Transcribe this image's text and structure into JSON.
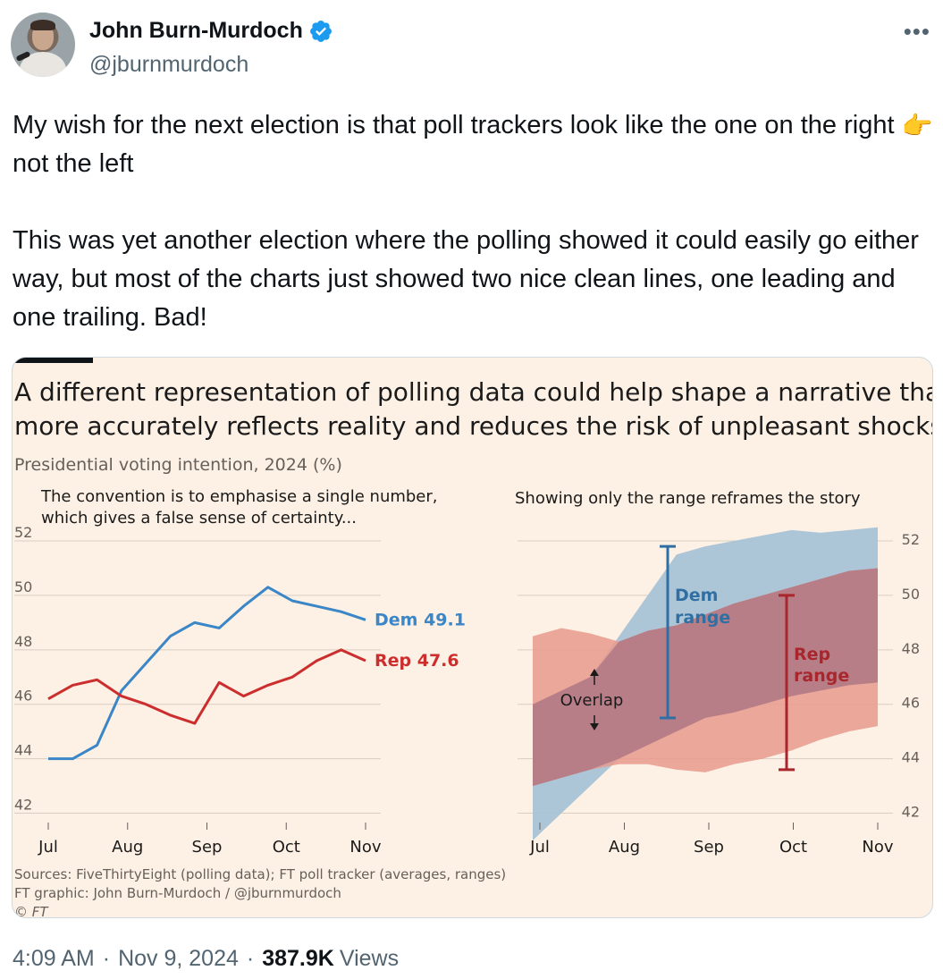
{
  "author": {
    "name": "John Burn-Murdoch",
    "handle": "@jburnmurdoch"
  },
  "tweet": {
    "line1_a": "My wish for the next election is that poll trackers look like the one on the",
    "line1_b": "right",
    "pointing_emoji": "👉",
    "line1_c": "not the left",
    "para2": "This was yet another election where the polling showed it could easily go either way, but most of the charts just showed two nice clean lines, one leading and one trailing. Bad!"
  },
  "card": {
    "title": "A different representation of polling data could help shape a narrative that more accurately reflects reality and reduces the risk of unpleasant shocks",
    "subtitle": "Presidential voting intention, 2024 (%)",
    "source1": "Sources: FiveThirtyEight (polling data); FT poll tracker (averages, ranges)",
    "source2": "FT graphic: John Burn-Murdoch / @jburnmurdoch",
    "source3": "© FT"
  },
  "footer": {
    "time": "4:09 AM",
    "date": "Nov 9, 2024",
    "views_count": "387.9K",
    "views_label": "Views"
  },
  "chart_data": [
    {
      "type": "line",
      "subtitle": "The convention is to emphasise a single number,",
      "subtitle2": "which gives a false sense of certainty...",
      "x": [
        "Jul 1",
        "Jul 10",
        "Jul 20",
        "Jul 25",
        "Aug 1",
        "Aug 10",
        "Aug 20",
        "Sep 1",
        "Sep 10",
        "Sep 20",
        "Oct 1",
        "Oct 10",
        "Oct 20",
        "Nov 1"
      ],
      "xticks": [
        "Jul",
        "Aug",
        "Sep",
        "Oct",
        "Nov"
      ],
      "ylim": [
        41,
        52
      ],
      "yticks": [
        42,
        44,
        46,
        48,
        50,
        52
      ],
      "series": [
        {
          "name": "Dem",
          "label": "Dem 49.1",
          "color": "#3a86c6",
          "values": [
            44.0,
            44.0,
            44.5,
            46.5,
            47.5,
            48.5,
            49.0,
            48.8,
            49.6,
            50.3,
            49.8,
            49.6,
            49.4,
            49.1
          ]
        },
        {
          "name": "Rep",
          "label": "Rep 47.6",
          "color": "#cc2e2e",
          "values": [
            46.2,
            46.7,
            46.9,
            46.3,
            46.0,
            45.6,
            45.3,
            46.8,
            46.3,
            46.7,
            47.0,
            47.6,
            48.0,
            47.6
          ]
        }
      ]
    },
    {
      "type": "area",
      "subtitle": "Showing only the range reframes the story",
      "x": [
        "Jul 1",
        "Jul 10",
        "Jul 20",
        "Aug 1",
        "Aug 10",
        "Aug 20",
        "Sep 1",
        "Sep 10",
        "Sep 20",
        "Oct 1",
        "Oct 10",
        "Oct 20",
        "Nov 1"
      ],
      "xticks": [
        "Jul",
        "Aug",
        "Sep",
        "Oct",
        "Nov"
      ],
      "ylim": [
        41,
        52
      ],
      "yticks": [
        42,
        44,
        46,
        48,
        50,
        52
      ],
      "series": [
        {
          "name": "Dem range",
          "label": "Dem range",
          "color": "#a9c3d6",
          "low": [
            41.0,
            42.0,
            43.0,
            44.0,
            44.5,
            45.0,
            45.5,
            45.7,
            46.0,
            46.3,
            46.5,
            46.7,
            46.8
          ],
          "high": [
            46.0,
            46.5,
            47.0,
            48.5,
            50.0,
            51.5,
            51.8,
            52.0,
            52.2,
            52.4,
            52.3,
            52.4,
            52.5
          ]
        },
        {
          "name": "Rep range",
          "label": "Rep range",
          "color": "#e79a8c",
          "low": [
            43.0,
            43.3,
            43.6,
            43.8,
            43.8,
            43.6,
            43.5,
            43.8,
            44.0,
            44.3,
            44.7,
            45.0,
            45.2
          ]
        },
        {
          "name": "Rep range high",
          "color": "#e79a8c",
          "high": [
            48.5,
            48.8,
            48.6,
            48.3,
            48.7,
            48.9,
            49.3,
            49.7,
            50.0,
            50.3,
            50.6,
            50.9,
            51.0
          ]
        }
      ],
      "annotation": "Overlap"
    }
  ]
}
